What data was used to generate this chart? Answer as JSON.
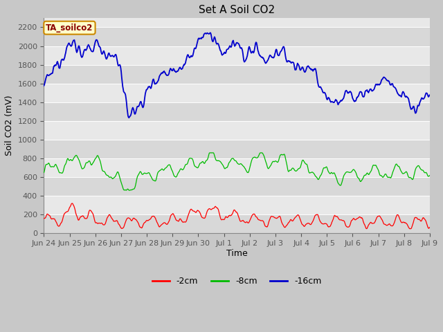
{
  "title": "Set A Soil CO2",
  "xlabel": "Time",
  "ylabel": "Soil CO2 (mV)",
  "legend_label": "TA_soilco2",
  "legend_entries": [
    "-2cm",
    "-8cm",
    "-16cm"
  ],
  "legend_colors": [
    "#ff0000",
    "#00bb00",
    "#0000cc"
  ],
  "ylim": [
    0,
    2300
  ],
  "yticks": [
    0,
    200,
    400,
    600,
    800,
    1000,
    1200,
    1400,
    1600,
    1800,
    2000,
    2200
  ],
  "bg_color": "#c8c8c8",
  "plot_bg_light": "#e8e8e8",
  "plot_bg_dark": "#d8d8d8",
  "title_fontsize": 11,
  "label_fontsize": 9,
  "tick_fontsize": 8
}
